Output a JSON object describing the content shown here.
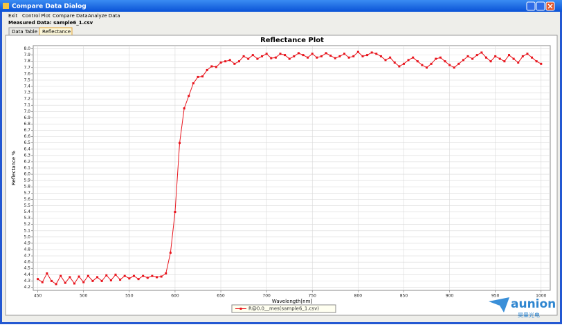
{
  "window": {
    "title": "Compare Data Dialog"
  },
  "menu": [
    "Exit",
    "Control Plot",
    "Compare Data",
    "Analyze Data"
  ],
  "measured_data": "Measured Data: sample6_1.csv",
  "tabs": [
    "Data Table",
    "Reflectance"
  ],
  "chart_data": {
    "type": "line",
    "title": "Reflectance Plot",
    "xlabel": "Wavelength[nm]",
    "ylabel": "Reflectance %",
    "x": [
      450,
      455,
      460,
      465,
      470,
      475,
      480,
      485,
      490,
      495,
      500,
      505,
      510,
      515,
      520,
      525,
      530,
      535,
      540,
      545,
      550,
      555,
      560,
      565,
      570,
      575,
      580,
      585,
      590,
      595,
      600,
      605,
      610,
      615,
      620,
      625,
      630,
      635,
      640,
      645,
      650,
      655,
      660,
      665,
      670,
      675,
      680,
      685,
      690,
      695,
      700,
      705,
      710,
      715,
      720,
      725,
      730,
      735,
      740,
      745,
      750,
      755,
      760,
      765,
      770,
      775,
      780,
      785,
      790,
      795,
      800,
      805,
      810,
      815,
      820,
      825,
      830,
      835,
      840,
      845,
      850,
      855,
      860,
      865,
      870,
      875,
      880,
      885,
      890,
      895,
      900,
      905,
      910,
      915,
      920,
      925,
      930,
      935,
      940,
      945,
      950,
      955,
      960,
      965,
      970,
      975,
      980,
      985,
      990,
      995,
      1000
    ],
    "series": [
      {
        "name": "R@0.0__mes(sample6_1.csv)",
        "color": "#e8141c",
        "values": [
          4.33,
          4.28,
          4.42,
          4.3,
          4.25,
          4.38,
          4.27,
          4.36,
          4.26,
          4.37,
          4.28,
          4.38,
          4.3,
          4.36,
          4.3,
          4.39,
          4.31,
          4.4,
          4.32,
          4.38,
          4.34,
          4.38,
          4.33,
          4.38,
          4.35,
          4.38,
          4.36,
          4.37,
          4.42,
          4.75,
          5.4,
          6.5,
          7.05,
          7.25,
          7.45,
          7.55,
          7.56,
          7.66,
          7.72,
          7.71,
          7.78,
          7.8,
          7.82,
          7.76,
          7.8,
          7.88,
          7.84,
          7.9,
          7.84,
          7.88,
          7.92,
          7.85,
          7.86,
          7.92,
          7.9,
          7.84,
          7.88,
          7.93,
          7.9,
          7.86,
          7.92,
          7.86,
          7.88,
          7.93,
          7.89,
          7.85,
          7.88,
          7.92,
          7.86,
          7.88,
          7.95,
          7.88,
          7.9,
          7.94,
          7.92,
          7.88,
          7.82,
          7.86,
          7.78,
          7.72,
          7.76,
          7.82,
          7.86,
          7.8,
          7.74,
          7.7,
          7.76,
          7.84,
          7.86,
          7.8,
          7.74,
          7.7,
          7.76,
          7.82,
          7.88,
          7.84,
          7.9,
          7.94,
          7.86,
          7.8,
          7.88,
          7.84,
          7.8,
          7.9,
          7.84,
          7.78,
          7.88,
          7.92,
          7.86,
          7.8,
          7.76
        ]
      }
    ],
    "xlim": [
      445,
      1010
    ],
    "ylim": [
      4.15,
      8.05
    ],
    "xticks": [
      450,
      500,
      550,
      600,
      650,
      700,
      750,
      800,
      850,
      900,
      950,
      1000
    ],
    "yticks": [
      4.2,
      4.3,
      4.4,
      4.5,
      4.6,
      4.7,
      4.8,
      4.9,
      {
        "value": 5,
        "label": "5.0"
      },
      5.1,
      5.2,
      5.3,
      5.4,
      5.5,
      5.6,
      5.7,
      5.8,
      5.9,
      {
        "value": 6,
        "label": "6.0"
      },
      6.1,
      6.2,
      6.3,
      6.4,
      6.5,
      6.6,
      6.7,
      6.8,
      6.9,
      {
        "value": 7,
        "label": "7.0"
      },
      7.1,
      7.2,
      7.3,
      7.4,
      7.5,
      7.6,
      7.7,
      7.8,
      7.9,
      {
        "value": 8,
        "label": "8.0"
      }
    ],
    "grid": true
  },
  "watermark": {
    "brand": "aunion",
    "subtitle": "昊量光电"
  }
}
